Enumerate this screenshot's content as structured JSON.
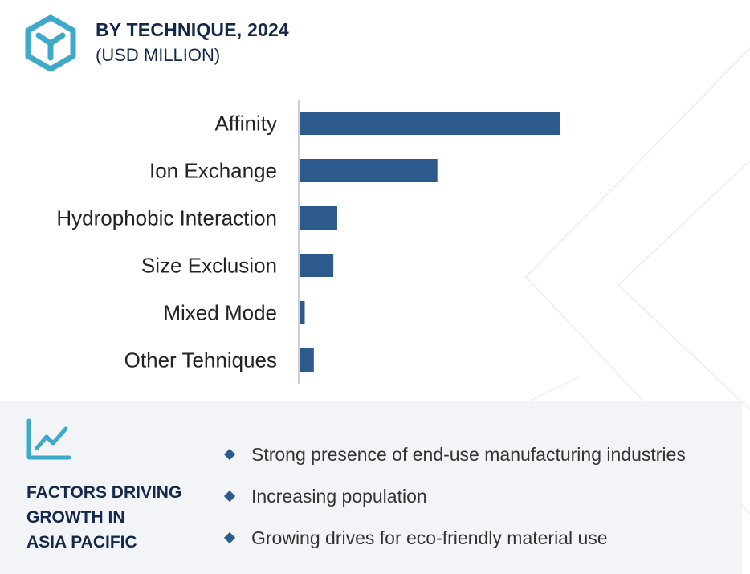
{
  "header": {
    "title": "BY TECHNIQUE, 2024",
    "subtitle": "(USD MILLION)",
    "logo_icon": "cube-y-icon"
  },
  "colors": {
    "bar": "#2c5a8c",
    "accent": "#3fa9c9",
    "heading": "#13284b",
    "panel": "#f2f4f8"
  },
  "chart_data": {
    "type": "bar",
    "orientation": "horizontal",
    "categories": [
      "Affinity",
      "Ion Exchange",
      "Hydrophobic Interaction",
      "Size Exclusion",
      "Mixed Mode",
      "Other Tehniques"
    ],
    "values": [
      100,
      53,
      14.5,
      13,
      2,
      5.5
    ],
    "xlim": [
      0,
      100
    ],
    "grid": false,
    "legend": "none"
  },
  "factors": {
    "icon": "trend-chart-icon",
    "heading": "FACTORS DRIVING\nGROWTH IN\nASIA PACIFIC",
    "items": [
      "Strong presence of end-use manufacturing industries",
      "Increasing population",
      "Growing drives for eco-friendly material use"
    ]
  }
}
